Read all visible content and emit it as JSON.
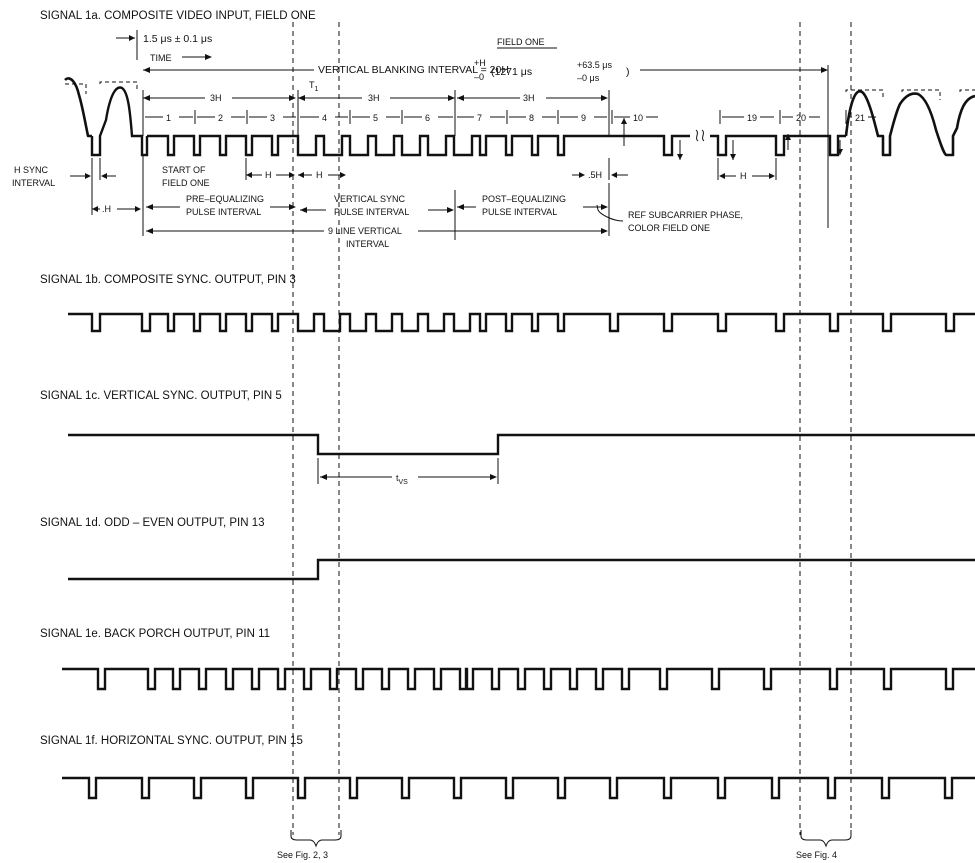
{
  "signals": {
    "s1a": "SIGNAL 1a.  COMPOSITE VIDEO INPUT, FIELD ONE",
    "s1b": "SIGNAL 1b.  COMPOSITE SYNC. OUTPUT, PIN 3",
    "s1c": "SIGNAL 1c.  VERTICAL SYNC. OUTPUT, PIN 5",
    "s1d": "SIGNAL 1d.  ODD – EVEN OUTPUT, PIN 13",
    "s1e": "SIGNAL 1e.  BACK PORCH OUTPUT, PIN 11",
    "s1f": "SIGNAL 1f. HORIZONTAL SYNC. OUTPUT, PIN 15"
  },
  "annotations": {
    "pulse_width": "1.5 μs ± 0.1 μs",
    "time": "TIME",
    "field_one": "FIELD ONE",
    "vbi": "VERTICAL BLANKING INTERVAL = 20H",
    "vbi_tol_plus": "+H",
    "vbi_tol_minus": "–0",
    "vbi_value": "(1271 μs",
    "vbi_sup": "+63.5 μs",
    "vbi_sub": "–0 μs",
    "vbi_close": ")",
    "t1": "T",
    "t1_sub": "1",
    "three_h": "3H",
    "line_numbers": [
      "1",
      "2",
      "3",
      "4",
      "5",
      "6",
      "7",
      "8",
      "9",
      "10",
      "19",
      "20",
      "21"
    ],
    "h": "H",
    "h_sync_interval_1": "H SYNC",
    "h_sync_interval_2": "INTERVAL",
    "start_field_1": "START OF",
    "start_field_2": "FIELD ONE",
    "dot_h": ".H",
    "dot5_h": ".5H",
    "pre_eq_1": "PRE–EQUALIZING",
    "pre_eq_2": "PULSE INTERVAL",
    "vsync_int_1": "VERTICAL SYNC",
    "vsync_int_2": "PULSE INTERVAL",
    "post_eq_1": "POST–EQUALIZING",
    "post_eq_2": "PULSE INTERVAL",
    "ref_sub_1": "REF SUBCARRIER PHASE,",
    "ref_sub_2": "COLOR FIELD ONE",
    "nine_line_1": "9  LINE VERTICAL",
    "nine_line_2": "INTERVAL",
    "tvs": "t",
    "tvs_sub": "VS",
    "see_fig_23": "See Fig. 2, 3",
    "see_fig_4": "See Fig. 4"
  }
}
